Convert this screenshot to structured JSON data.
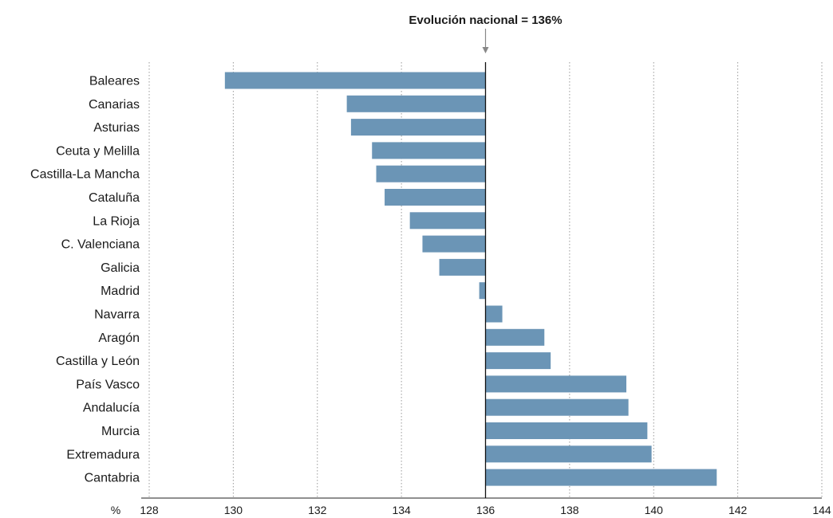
{
  "chart_data": {
    "type": "bar",
    "orientation": "horizontal",
    "reference_line": {
      "value": 136,
      "label": "Evolución nacional = 136%"
    },
    "unit_label": "%",
    "categories": [
      "Baleares",
      "Canarias",
      "Asturias",
      "Ceuta y Melilla",
      "Castilla-La Mancha",
      "Cataluña",
      "La Rioja",
      "C. Valenciana",
      "Galicia",
      "Madrid",
      "Navarra",
      "Aragón",
      "Castilla y León",
      "País Vasco",
      "Andalucía",
      "Murcia",
      "Extremadura",
      "Cantabria"
    ],
    "values": [
      129.8,
      132.7,
      132.8,
      133.3,
      133.4,
      133.6,
      134.2,
      134.5,
      134.9,
      135.85,
      136.4,
      137.4,
      137.55,
      139.35,
      139.4,
      139.85,
      139.95,
      141.5
    ],
    "xlim": [
      128,
      144
    ],
    "xticks": [
      "128",
      "130",
      "132",
      "134",
      "136",
      "138",
      "140",
      "142",
      "144"
    ],
    "grid": true,
    "bar_color": "#6b95b6"
  }
}
